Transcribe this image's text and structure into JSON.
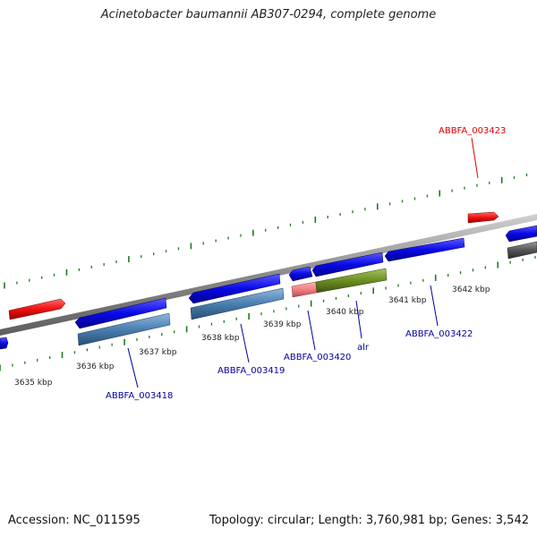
{
  "header": {
    "title": "Acinetobacter baumannii AB307-0294, complete genome"
  },
  "footer": {
    "accession": "Accession: NC_011595",
    "summary": "Topology: circular; Length: 3,760,981 bp; Genes: 3,542"
  },
  "axis": {
    "unit": "kbp",
    "major_ticks_kbp": [
      3635,
      3636,
      3637,
      3638,
      3639,
      3640,
      3641,
      3642
    ],
    "tick_labels": [
      "3635 kbp",
      "3636 kbp",
      "3637 kbp",
      "3638 kbp",
      "3639 kbp",
      "3640 kbp",
      "3641 kbp",
      "3642 kbp"
    ]
  },
  "colors": {
    "backbone": "#8a8a8a",
    "tick": "#1f7a1f",
    "gene_blue": "#0a0ae6",
    "gene_red": "#ee1111",
    "gene_steel": "#4a7fb0",
    "gene_salmon": "#f08080",
    "gene_olive": "#6b8e23",
    "gene_gray": "#555555",
    "label_blue": "#0000a0",
    "label_red": "#dd0000"
  },
  "labels": [
    {
      "text": "ABBFA_003418",
      "color": "blue"
    },
    {
      "text": "ABBFA_003419",
      "color": "blue"
    },
    {
      "text": "ABBFA_003420",
      "color": "blue"
    },
    {
      "text": "alr",
      "color": "blue"
    },
    {
      "text": "ABBFA_003422",
      "color": "blue"
    },
    {
      "text": "ABBFA_003423",
      "color": "red"
    }
  ]
}
